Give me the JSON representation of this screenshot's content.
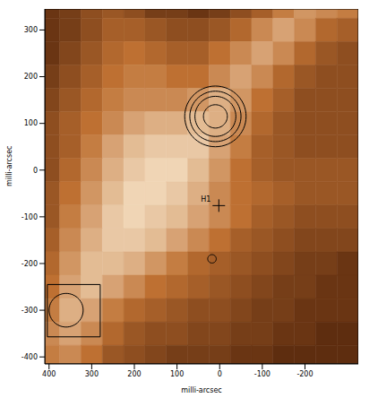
{
  "chart_data": {
    "type": "heatmap",
    "x_label": "milli-arcsec",
    "y_label": "milli-arcsec",
    "xlim": [
      410,
      -325
    ],
    "ylim": [
      -415,
      345
    ],
    "xticks": [
      400,
      300,
      200,
      100,
      0,
      -100,
      -200
    ],
    "yticks": [
      300,
      200,
      100,
      0,
      -100,
      -200,
      -300,
      -400
    ],
    "zlim": [
      0,
      1
    ],
    "cells": {
      "x": [
        400,
        350,
        300,
        250,
        200,
        150,
        100,
        50,
        0,
        -50,
        -100,
        -150,
        -200,
        -250,
        -300
      ],
      "y": [
        350,
        300,
        250,
        200,
        150,
        100,
        50,
        0,
        -50,
        -100,
        -150,
        -200,
        -250,
        -300,
        -350,
        -400
      ],
      "z": [
        [
          0.15,
          0.2,
          0.3,
          0.35,
          0.3,
          0.2,
          0.2,
          0.15,
          0.2,
          0.3,
          0.4,
          0.55,
          0.65,
          0.6,
          0.55
        ],
        [
          0.15,
          0.2,
          0.3,
          0.4,
          0.4,
          0.35,
          0.3,
          0.3,
          0.35,
          0.45,
          0.6,
          0.7,
          0.6,
          0.45,
          0.4
        ],
        [
          0.15,
          0.25,
          0.35,
          0.45,
          0.5,
          0.45,
          0.4,
          0.4,
          0.5,
          0.6,
          0.7,
          0.6,
          0.45,
          0.35,
          0.3
        ],
        [
          0.2,
          0.3,
          0.4,
          0.5,
          0.55,
          0.55,
          0.5,
          0.5,
          0.6,
          0.7,
          0.6,
          0.45,
          0.35,
          0.3,
          0.3
        ],
        [
          0.25,
          0.35,
          0.45,
          0.55,
          0.6,
          0.6,
          0.6,
          0.65,
          0.75,
          0.65,
          0.5,
          0.4,
          0.3,
          0.3,
          0.3
        ],
        [
          0.3,
          0.4,
          0.5,
          0.6,
          0.7,
          0.75,
          0.75,
          0.8,
          0.75,
          0.6,
          0.45,
          0.35,
          0.3,
          0.3,
          0.3
        ],
        [
          0.3,
          0.4,
          0.55,
          0.7,
          0.8,
          0.85,
          0.85,
          0.85,
          0.7,
          0.55,
          0.4,
          0.35,
          0.3,
          0.3,
          0.3
        ],
        [
          0.3,
          0.45,
          0.6,
          0.75,
          0.85,
          0.9,
          0.9,
          0.8,
          0.65,
          0.5,
          0.4,
          0.35,
          0.35,
          0.35,
          0.35
        ],
        [
          0.35,
          0.5,
          0.65,
          0.8,
          0.9,
          0.9,
          0.85,
          0.75,
          0.6,
          0.5,
          0.45,
          0.4,
          0.35,
          0.35,
          0.35
        ],
        [
          0.35,
          0.55,
          0.7,
          0.85,
          0.9,
          0.85,
          0.8,
          0.7,
          0.6,
          0.5,
          0.4,
          0.35,
          0.3,
          0.3,
          0.3
        ],
        [
          0.4,
          0.6,
          0.75,
          0.85,
          0.85,
          0.8,
          0.7,
          0.6,
          0.5,
          0.4,
          0.35,
          0.3,
          0.25,
          0.25,
          0.25
        ],
        [
          0.45,
          0.65,
          0.8,
          0.8,
          0.75,
          0.65,
          0.55,
          0.45,
          0.4,
          0.35,
          0.3,
          0.25,
          0.2,
          0.2,
          0.15
        ],
        [
          0.5,
          0.7,
          0.8,
          0.7,
          0.6,
          0.5,
          0.45,
          0.4,
          0.35,
          0.3,
          0.25,
          0.2,
          0.2,
          0.15,
          0.15
        ],
        [
          0.55,
          0.75,
          0.7,
          0.55,
          0.45,
          0.4,
          0.35,
          0.3,
          0.3,
          0.25,
          0.2,
          0.2,
          0.15,
          0.15,
          0.15
        ],
        [
          0.6,
          0.7,
          0.6,
          0.45,
          0.35,
          0.3,
          0.3,
          0.25,
          0.25,
          0.2,
          0.2,
          0.15,
          0.15,
          0.1,
          0.1
        ],
        [
          0.55,
          0.6,
          0.5,
          0.35,
          0.3,
          0.25,
          0.2,
          0.2,
          0.2,
          0.15,
          0.15,
          0.1,
          0.1,
          0.1,
          0.1
        ]
      ]
    },
    "contours": [
      {
        "x": 10,
        "y": 115,
        "rx": [
          28,
          48,
          60,
          72
        ],
        "ry": [
          25,
          43,
          54,
          65
        ]
      },
      {
        "x": 18,
        "y": -190,
        "rx": [
          10
        ],
        "ry": [
          9
        ]
      }
    ],
    "markers": [
      {
        "x": 2,
        "y": -76,
        "label": "H1",
        "marker": "cross"
      }
    ],
    "beam": {
      "x": 360,
      "y": -300,
      "rx": 40,
      "ry": 36,
      "box_x": [
        404,
        280
      ],
      "box_y": [
        -245,
        -357
      ]
    }
  }
}
